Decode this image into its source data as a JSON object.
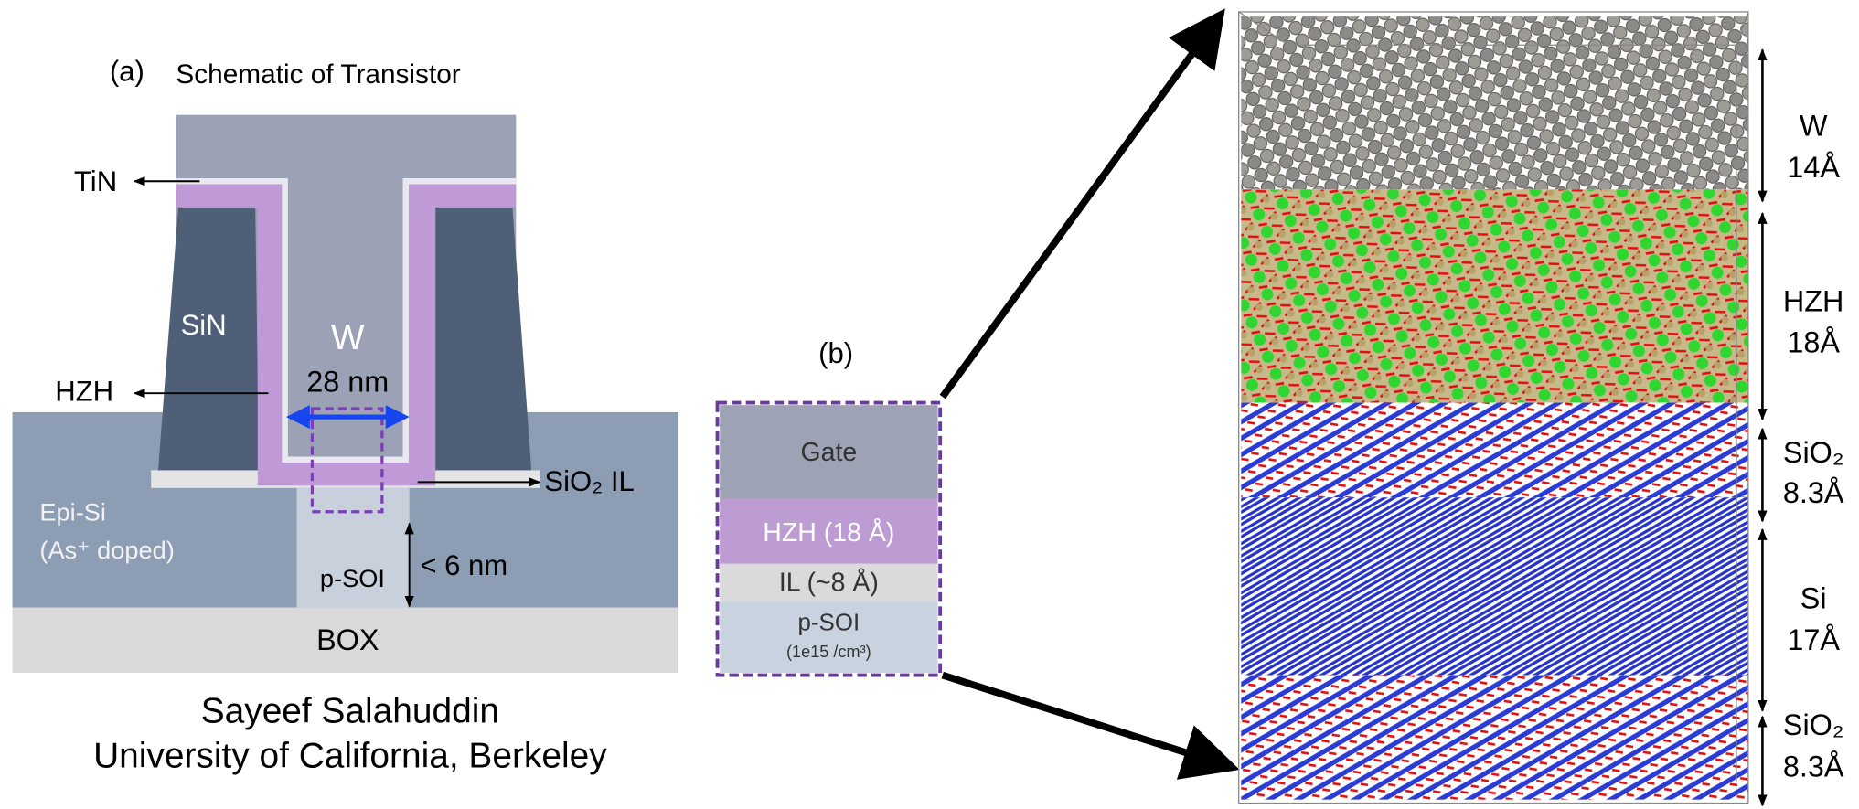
{
  "panel_a": {
    "label": "(a)",
    "title": "Schematic of Transistor",
    "labels": {
      "tin": "TiN",
      "sin": "SiN",
      "w": "W",
      "width": "28 nm",
      "hzh": "HZH",
      "epi": "Epi-Si",
      "epi_doping": "(As⁺ doped)",
      "psoi": "p-SOI",
      "thickness": "< 6 nm",
      "box": "BOX",
      "il": "SiO₂ IL"
    },
    "credit": [
      "Sayeef Salahuddin",
      "University of California, Berkeley"
    ]
  },
  "panel_b": {
    "label": "(b)",
    "layers": [
      "Gate",
      "HZH (18 Å)",
      "IL (~8 Å)",
      "p-SOI"
    ],
    "doping": "(1e15 /cm³)"
  },
  "panel_c": {
    "layers": [
      {
        "name": "W",
        "thickness": "14Å"
      },
      {
        "name": "HZH",
        "thickness": "18Å"
      },
      {
        "name": "SiO₂",
        "thickness": "8.3Å"
      },
      {
        "name": "Si",
        "thickness": "17Å"
      },
      {
        "name": "SiO₂",
        "thickness": "8.3Å"
      }
    ]
  }
}
